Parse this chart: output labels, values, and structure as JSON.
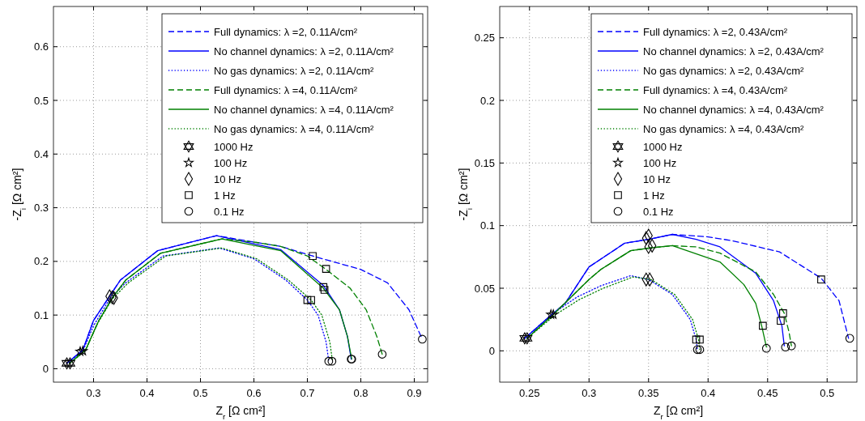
{
  "chart_data": [
    {
      "type": "line",
      "xlabel": "Z$_{r}$ [Ω cm²]",
      "ylabel": "-Z$_{i}$ [Ω cm²]",
      "xlim": [
        0.225,
        0.925
      ],
      "ylim": [
        -0.025,
        0.675
      ],
      "xticks": [
        0.3,
        0.4,
        0.5,
        0.6,
        0.7,
        0.8,
        0.9
      ],
      "yticks": [
        0,
        0.1,
        0.2,
        0.3,
        0.4,
        0.5,
        0.6
      ],
      "grid": true,
      "legend": "top right",
      "series": [
        {
          "name": "Full dynamics: λ =2, 0.11A/cm²",
          "color": "#0000ff",
          "line_style": "dashed",
          "x": [
            0.25,
            0.28,
            0.3,
            0.33,
            0.35,
            0.42,
            0.53,
            0.6,
            0.65,
            0.71,
            0.8,
            0.85,
            0.89,
            0.915
          ],
          "values": [
            0.01,
            0.035,
            0.09,
            0.135,
            0.165,
            0.22,
            0.248,
            0.236,
            0.228,
            0.21,
            0.185,
            0.16,
            0.11,
            0.055
          ]
        },
        {
          "name": "No channel dynamics: λ =2, 0.11A/cm²",
          "color": "#0000ff",
          "line_style": "solid",
          "x": [
            0.25,
            0.28,
            0.3,
            0.33,
            0.35,
            0.42,
            0.53,
            0.65,
            0.73,
            0.76,
            0.775,
            0.782
          ],
          "values": [
            0.01,
            0.035,
            0.09,
            0.135,
            0.165,
            0.22,
            0.248,
            0.222,
            0.155,
            0.11,
            0.06,
            0.018
          ]
        },
        {
          "name": "No gas dynamics: λ =2, 0.11A/cm²",
          "color": "#0000ff",
          "line_style": "dotted",
          "x": [
            0.25,
            0.28,
            0.3,
            0.33,
            0.36,
            0.43,
            0.535,
            0.6,
            0.66,
            0.7,
            0.72,
            0.735,
            0.74
          ],
          "values": [
            0.01,
            0.033,
            0.08,
            0.13,
            0.16,
            0.21,
            0.225,
            0.205,
            0.165,
            0.128,
            0.1,
            0.05,
            0.014
          ]
        },
        {
          "name": "Full dynamics: λ =4, 0.11A/cm²",
          "color": "#008000",
          "line_style": "dashed",
          "x": [
            0.255,
            0.285,
            0.31,
            0.335,
            0.36,
            0.425,
            0.54,
            0.6,
            0.65,
            0.7,
            0.735,
            0.78,
            0.81,
            0.83,
            0.84
          ],
          "values": [
            0.01,
            0.035,
            0.09,
            0.132,
            0.165,
            0.215,
            0.242,
            0.236,
            0.228,
            0.21,
            0.185,
            0.15,
            0.11,
            0.06,
            0.027
          ]
        },
        {
          "name": "No channel dynamics: λ =4, 0.11A/cm²",
          "color": "#008000",
          "line_style": "solid",
          "x": [
            0.255,
            0.285,
            0.31,
            0.335,
            0.36,
            0.425,
            0.54,
            0.65,
            0.73,
            0.76,
            0.775,
            0.783
          ],
          "values": [
            0.01,
            0.035,
            0.09,
            0.132,
            0.165,
            0.215,
            0.242,
            0.22,
            0.15,
            0.11,
            0.06,
            0.018
          ]
        },
        {
          "name": "No gas dynamics: λ =4, 0.11A/cm²",
          "color": "#008000",
          "line_style": "dotted",
          "x": [
            0.255,
            0.285,
            0.305,
            0.335,
            0.365,
            0.435,
            0.54,
            0.605,
            0.665,
            0.707,
            0.727,
            0.742,
            0.747
          ],
          "values": [
            0.01,
            0.033,
            0.08,
            0.13,
            0.16,
            0.21,
            0.225,
            0.205,
            0.165,
            0.128,
            0.1,
            0.05,
            0.014
          ]
        },
        {
          "name": "1000 Hz",
          "type": "scatter",
          "color": "#000000",
          "x": [
            0.25,
            0.256
          ],
          "values": [
            0.01,
            0.01
          ]
        },
        {
          "name": "100 Hz",
          "type": "scatter",
          "marker": "star",
          "color": "#000000",
          "x": [
            0.275,
            0.28
          ],
          "values": [
            0.032,
            0.033
          ]
        },
        {
          "name": "10 Hz",
          "type": "scatter",
          "marker": "diamond",
          "color": "#000000",
          "x": [
            0.33,
            0.335,
            0.338
          ],
          "values": [
            0.135,
            0.133,
            0.132
          ]
        },
        {
          "name": "1 Hz",
          "type": "scatter",
          "marker": "square",
          "color": "#000000",
          "x": [
            0.71,
            0.735,
            0.73,
            0.732,
            0.7,
            0.707
          ],
          "values": [
            0.21,
            0.186,
            0.152,
            0.147,
            0.128,
            0.128
          ]
        },
        {
          "name": "0.1 Hz",
          "type": "scatter",
          "marker": "circle",
          "color": "#000000",
          "x": [
            0.915,
            0.84,
            0.782,
            0.783,
            0.74,
            0.746
          ],
          "values": [
            0.055,
            0.027,
            0.018,
            0.018,
            0.014,
            0.014
          ]
        }
      ]
    },
    {
      "type": "line",
      "xlabel": "Z$_{r}$ [Ω cm²]",
      "ylabel": "-Z$_{i}$ [Ω cm²]",
      "xlim": [
        0.225,
        0.525
      ],
      "ylim": [
        -0.025,
        0.275
      ],
      "xticks": [
        0.25,
        0.3,
        0.35,
        0.4,
        0.45,
        0.5
      ],
      "yticks": [
        0,
        0.05,
        0.1,
        0.15,
        0.2,
        0.25
      ],
      "grid": true,
      "legend": "top right",
      "series": [
        {
          "name": "Full dynamics: λ =2, 0.43A/cm²",
          "color": "#0000ff",
          "line_style": "dashed",
          "x": [
            0.246,
            0.27,
            0.28,
            0.3,
            0.33,
            0.35,
            0.37,
            0.4,
            0.42,
            0.46,
            0.495,
            0.51,
            0.518
          ],
          "values": [
            0.01,
            0.03,
            0.038,
            0.067,
            0.086,
            0.089,
            0.093,
            0.091,
            0.088,
            0.079,
            0.058,
            0.04,
            0.01
          ]
        },
        {
          "name": "No channel dynamics: λ =2, 0.43A/cm²",
          "color": "#0000ff",
          "line_style": "solid",
          "x": [
            0.246,
            0.27,
            0.28,
            0.3,
            0.33,
            0.35,
            0.37,
            0.39,
            0.41,
            0.44,
            0.455,
            0.462,
            0.464
          ],
          "values": [
            0.01,
            0.03,
            0.038,
            0.067,
            0.086,
            0.089,
            0.093,
            0.089,
            0.083,
            0.062,
            0.04,
            0.02,
            0.004
          ]
        },
        {
          "name": "No gas dynamics: λ =2, 0.43A/cm²",
          "color": "#0000ff",
          "line_style": "dotted",
          "x": [
            0.246,
            0.27,
            0.29,
            0.31,
            0.335,
            0.35,
            0.37,
            0.385,
            0.39,
            0.391
          ],
          "values": [
            0.01,
            0.03,
            0.043,
            0.052,
            0.06,
            0.057,
            0.045,
            0.025,
            0.009,
            0.001
          ]
        },
        {
          "name": "Full dynamics: λ =4, 0.43A/cm²",
          "color": "#008000",
          "line_style": "dashed",
          "x": [
            0.248,
            0.27,
            0.3,
            0.31,
            0.335,
            0.35,
            0.37,
            0.39,
            0.41,
            0.44,
            0.455,
            0.464,
            0.468,
            0.47
          ],
          "values": [
            0.01,
            0.029,
            0.057,
            0.065,
            0.08,
            0.082,
            0.084,
            0.083,
            0.078,
            0.063,
            0.045,
            0.03,
            0.015,
            0.004
          ]
        },
        {
          "name": "No channel dynamics: λ =4, 0.43A/cm²",
          "color": "#008000",
          "line_style": "solid",
          "x": [
            0.248,
            0.27,
            0.3,
            0.31,
            0.335,
            0.35,
            0.37,
            0.41,
            0.43,
            0.44,
            0.445,
            0.449
          ],
          "values": [
            0.01,
            0.029,
            0.057,
            0.065,
            0.08,
            0.082,
            0.084,
            0.071,
            0.053,
            0.038,
            0.02,
            0.003
          ]
        },
        {
          "name": "No gas dynamics: λ =4, 0.43A/cm²",
          "color": "#008000",
          "line_style": "dotted",
          "x": [
            0.248,
            0.272,
            0.292,
            0.312,
            0.337,
            0.352,
            0.372,
            0.387,
            0.392,
            0.393
          ],
          "values": [
            0.01,
            0.029,
            0.041,
            0.05,
            0.059,
            0.057,
            0.045,
            0.025,
            0.009,
            0.001
          ]
        },
        {
          "name": "1000 Hz",
          "type": "scatter",
          "color": "#000000",
          "x": [
            0.246,
            0.248
          ],
          "values": [
            0.01,
            0.01
          ]
        },
        {
          "name": "100 Hz",
          "type": "scatter",
          "marker": "star",
          "color": "#000000",
          "x": [
            0.268,
            0.27
          ],
          "values": [
            0.029,
            0.029
          ]
        },
        {
          "name": "10 Hz",
          "type": "scatter",
          "marker": "diamond",
          "color": "#000000",
          "x": [
            0.348,
            0.35,
            0.35,
            0.353,
            0.348,
            0.351
          ],
          "values": [
            0.09,
            0.092,
            0.083,
            0.084,
            0.057,
            0.057
          ]
        },
        {
          "name": "1 Hz",
          "type": "scatter",
          "marker": "square",
          "color": "#000000",
          "x": [
            0.495,
            0.461,
            0.463,
            0.446,
            0.39,
            0.393
          ],
          "values": [
            0.057,
            0.024,
            0.03,
            0.02,
            0.009,
            0.009
          ]
        },
        {
          "name": "0.1 Hz",
          "type": "scatter",
          "marker": "circle",
          "color": "#000000",
          "x": [
            0.519,
            0.465,
            0.47,
            0.449,
            0.391,
            0.393
          ],
          "values": [
            0.01,
            0.003,
            0.004,
            0.002,
            0.001,
            0.001
          ]
        }
      ]
    }
  ]
}
